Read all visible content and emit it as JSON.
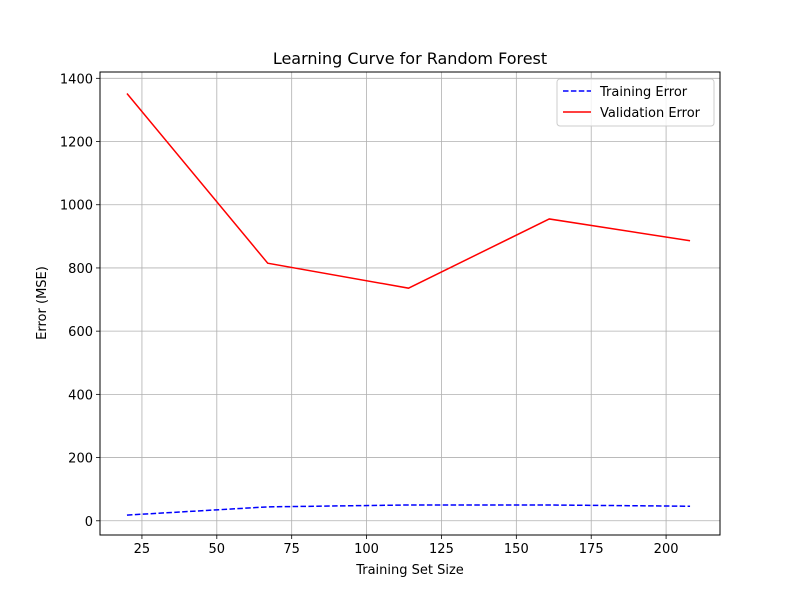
{
  "chart_data": {
    "type": "line",
    "title": "Learning Curve for Random Forest",
    "xlabel": "Training Set Size",
    "ylabel": "Error (MSE)",
    "xlim": [
      11,
      218
    ],
    "ylim": [
      -45,
      1420
    ],
    "xticks": [
      25,
      50,
      75,
      100,
      125,
      150,
      175,
      200
    ],
    "yticks": [
      0,
      200,
      400,
      600,
      800,
      1000,
      1200,
      1400
    ],
    "grid": true,
    "legend_position": "top-right",
    "x": [
      20,
      67,
      114,
      161,
      208
    ],
    "series": [
      {
        "name": "Training Error",
        "values": [
          18,
          44,
          50,
          50,
          46
        ],
        "color": "#0000ff",
        "line_style": "dashed"
      },
      {
        "name": "Validation Error",
        "values": [
          1352,
          815,
          736,
          955,
          886
        ],
        "color": "#ff0000",
        "line_style": "solid"
      }
    ]
  }
}
